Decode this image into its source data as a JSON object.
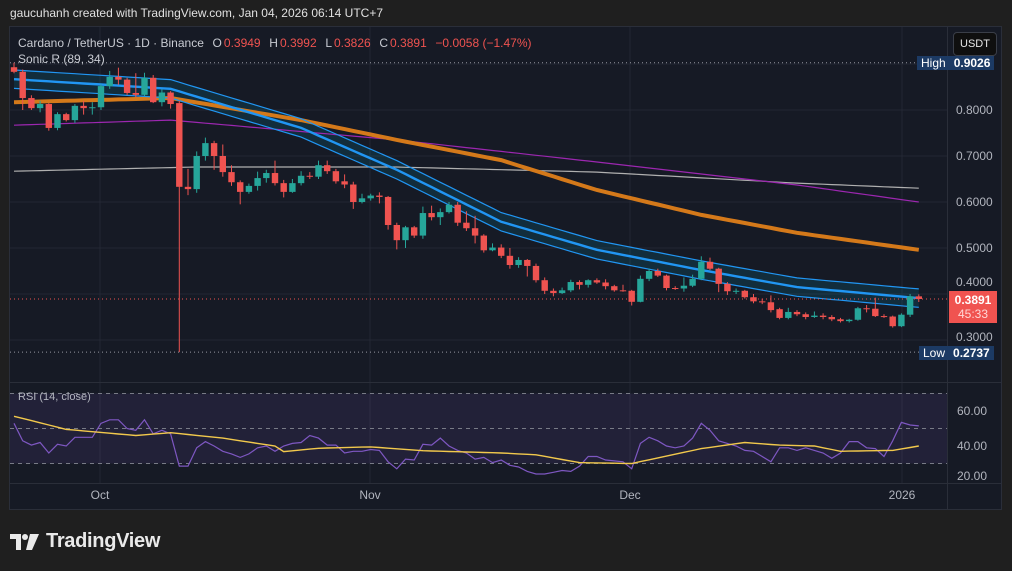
{
  "credit": "gaucuhanh created with TradingView.com, Jan 04, 2026 06:14 UTC+7",
  "legend": {
    "symbol": "Cardano / TetherUS · 1D · Binance",
    "o_label": "O",
    "o": "0.3949",
    "h_label": "H",
    "h": "0.3992",
    "l_label": "L",
    "l": "0.3826",
    "c_label": "C",
    "c": "0.3891",
    "change": "−0.0058 (−1.47%)",
    "indicator": "Sonic R (89, 34)"
  },
  "rsi_label": "RSI (14, close)",
  "currency_button": "USDT",
  "price_axis": [
    "0.8000",
    "0.7000",
    "0.6000",
    "0.5000",
    "0.4000",
    "0.3000"
  ],
  "rsi_axis": [
    "60.00",
    "40.00",
    "20.00"
  ],
  "time_axis": [
    "Oct",
    "Nov",
    "Dec",
    "2026"
  ],
  "high_label": {
    "key": "High",
    "value": "0.9026"
  },
  "low_label": {
    "key": "Low",
    "value": "0.2737"
  },
  "last_price": {
    "value": "0.3891",
    "countdown": "45:33"
  },
  "brand": "TradingView",
  "colors": {
    "up": "#26a69a",
    "down": "#ef5350",
    "band": "#2196f3",
    "ema89": "#d4791a",
    "purple": "#9c27b0",
    "grey": "#b0b0b0",
    "rsi": "#7e57c2",
    "rsi_ma": "#f2c94c"
  },
  "chart_data": {
    "type": "candlestick",
    "title": "Cardano / TetherUS · 1D · Binance",
    "x_start": "Sep 21, 2025",
    "x_end": "Jan 3, 2026",
    "ylim": [
      0.25,
      0.92
    ],
    "candles_ohlc": [
      [
        0.893,
        0.9026,
        0.88,
        0.883
      ],
      [
        0.883,
        0.888,
        0.8,
        0.826
      ],
      [
        0.826,
        0.832,
        0.8,
        0.804
      ],
      [
        0.804,
        0.82,
        0.795,
        0.813
      ],
      [
        0.813,
        0.815,
        0.755,
        0.761
      ],
      [
        0.761,
        0.795,
        0.756,
        0.791
      ],
      [
        0.791,
        0.794,
        0.775,
        0.778
      ],
      [
        0.778,
        0.813,
        0.772,
        0.809
      ],
      [
        0.809,
        0.82,
        0.79,
        0.804
      ],
      [
        0.804,
        0.817,
        0.79,
        0.806
      ],
      [
        0.806,
        0.856,
        0.8,
        0.852
      ],
      [
        0.852,
        0.885,
        0.846,
        0.872
      ],
      [
        0.872,
        0.892,
        0.855,
        0.866
      ],
      [
        0.866,
        0.87,
        0.833,
        0.837
      ],
      [
        0.837,
        0.88,
        0.828,
        0.833
      ],
      [
        0.833,
        0.881,
        0.83,
        0.87
      ],
      [
        0.87,
        0.876,
        0.815,
        0.817
      ],
      [
        0.817,
        0.845,
        0.808,
        0.838
      ],
      [
        0.838,
        0.841,
        0.803,
        0.813
      ],
      [
        0.815,
        0.82,
        0.2737,
        0.633
      ],
      [
        0.633,
        0.672,
        0.615,
        0.628
      ],
      [
        0.628,
        0.71,
        0.62,
        0.7
      ],
      [
        0.7,
        0.74,
        0.69,
        0.728
      ],
      [
        0.728,
        0.733,
        0.67,
        0.7
      ],
      [
        0.7,
        0.725,
        0.655,
        0.665
      ],
      [
        0.665,
        0.68,
        0.635,
        0.643
      ],
      [
        0.643,
        0.647,
        0.595,
        0.622
      ],
      [
        0.622,
        0.64,
        0.618,
        0.635
      ],
      [
        0.635,
        0.666,
        0.625,
        0.652
      ],
      [
        0.652,
        0.67,
        0.642,
        0.663
      ],
      [
        0.663,
        0.69,
        0.636,
        0.641
      ],
      [
        0.641,
        0.648,
        0.61,
        0.622
      ],
      [
        0.622,
        0.65,
        0.62,
        0.641
      ],
      [
        0.641,
        0.667,
        0.636,
        0.657
      ],
      [
        0.657,
        0.665,
        0.65,
        0.655
      ],
      [
        0.655,
        0.69,
        0.65,
        0.68
      ],
      [
        0.68,
        0.69,
        0.661,
        0.667
      ],
      [
        0.667,
        0.672,
        0.64,
        0.645
      ],
      [
        0.645,
        0.66,
        0.63,
        0.638
      ],
      [
        0.638,
        0.644,
        0.585,
        0.6
      ],
      [
        0.6,
        0.618,
        0.597,
        0.608
      ],
      [
        0.608,
        0.618,
        0.603,
        0.614
      ],
      [
        0.614,
        0.621,
        0.597,
        0.611
      ],
      [
        0.611,
        0.613,
        0.54,
        0.55
      ],
      [
        0.55,
        0.555,
        0.497,
        0.517
      ],
      [
        0.517,
        0.548,
        0.5,
        0.545
      ],
      [
        0.545,
        0.548,
        0.522,
        0.527
      ],
      [
        0.527,
        0.59,
        0.52,
        0.576
      ],
      [
        0.576,
        0.592,
        0.56,
        0.567
      ],
      [
        0.567,
        0.586,
        0.55,
        0.578
      ],
      [
        0.578,
        0.6,
        0.575,
        0.594
      ],
      [
        0.594,
        0.6,
        0.548,
        0.555
      ],
      [
        0.555,
        0.58,
        0.537,
        0.543
      ],
      [
        0.543,
        0.57,
        0.51,
        0.527
      ],
      [
        0.527,
        0.53,
        0.49,
        0.495
      ],
      [
        0.495,
        0.51,
        0.493,
        0.501
      ],
      [
        0.501,
        0.508,
        0.478,
        0.483
      ],
      [
        0.483,
        0.5,
        0.455,
        0.463
      ],
      [
        0.463,
        0.48,
        0.457,
        0.474
      ],
      [
        0.474,
        0.476,
        0.438,
        0.461
      ],
      [
        0.461,
        0.466,
        0.425,
        0.43
      ],
      [
        0.43,
        0.436,
        0.4,
        0.407
      ],
      [
        0.407,
        0.412,
        0.395,
        0.402
      ],
      [
        0.402,
        0.414,
        0.4,
        0.408
      ],
      [
        0.408,
        0.431,
        0.404,
        0.426
      ],
      [
        0.426,
        0.43,
        0.41,
        0.42
      ],
      [
        0.42,
        0.432,
        0.414,
        0.43
      ],
      [
        0.43,
        0.434,
        0.422,
        0.425
      ],
      [
        0.425,
        0.432,
        0.41,
        0.417
      ],
      [
        0.417,
        0.42,
        0.405,
        0.408
      ],
      [
        0.408,
        0.42,
        0.405,
        0.407
      ],
      [
        0.407,
        0.409,
        0.375,
        0.383
      ],
      [
        0.383,
        0.44,
        0.382,
        0.433
      ],
      [
        0.433,
        0.455,
        0.428,
        0.45
      ],
      [
        0.45,
        0.455,
        0.437,
        0.44
      ],
      [
        0.44,
        0.442,
        0.408,
        0.413
      ],
      [
        0.413,
        0.417,
        0.409,
        0.412
      ],
      [
        0.412,
        0.436,
        0.405,
        0.418
      ],
      [
        0.418,
        0.442,
        0.415,
        0.433
      ],
      [
        0.433,
        0.482,
        0.43,
        0.47
      ],
      [
        0.47,
        0.479,
        0.452,
        0.455
      ],
      [
        0.455,
        0.457,
        0.404,
        0.422
      ],
      [
        0.422,
        0.426,
        0.398,
        0.406
      ],
      [
        0.406,
        0.412,
        0.4,
        0.407
      ],
      [
        0.407,
        0.409,
        0.39,
        0.393
      ],
      [
        0.393,
        0.4,
        0.38,
        0.384
      ],
      [
        0.384,
        0.39,
        0.378,
        0.382
      ],
      [
        0.382,
        0.397,
        0.36,
        0.365
      ],
      [
        0.367,
        0.37,
        0.345,
        0.348
      ],
      [
        0.348,
        0.37,
        0.345,
        0.361
      ],
      [
        0.361,
        0.365,
        0.352,
        0.356
      ],
      [
        0.356,
        0.36,
        0.345,
        0.35
      ],
      [
        0.35,
        0.362,
        0.348,
        0.353
      ],
      [
        0.353,
        0.358,
        0.345,
        0.35
      ],
      [
        0.35,
        0.354,
        0.341,
        0.345
      ],
      [
        0.345,
        0.348,
        0.338,
        0.341
      ],
      [
        0.341,
        0.346,
        0.338,
        0.344
      ],
      [
        0.344,
        0.372,
        0.342,
        0.369
      ],
      [
        0.369,
        0.376,
        0.36,
        0.368
      ],
      [
        0.368,
        0.392,
        0.35,
        0.352
      ],
      [
        0.352,
        0.356,
        0.348,
        0.351
      ],
      [
        0.351,
        0.353,
        0.327,
        0.33
      ],
      [
        0.33,
        0.358,
        0.328,
        0.355
      ],
      [
        0.355,
        0.4,
        0.35,
        0.395
      ],
      [
        0.3949,
        0.3992,
        0.3826,
        0.3891
      ]
    ],
    "overlays": [
      {
        "name": "ema34_mid",
        "color": "#2196f3",
        "points": [
          [
            0,
            0.867
          ],
          [
            18,
            0.846
          ],
          [
            33,
            0.761
          ],
          [
            44,
            0.67
          ],
          [
            56,
            0.557
          ],
          [
            67,
            0.496
          ],
          [
            79,
            0.452
          ],
          [
            90,
            0.415
          ],
          [
            104,
            0.391
          ]
        ],
        "band_halfwidth": 0.02
      },
      {
        "name": "ema89",
        "color": "#d4791a",
        "points": [
          [
            0,
            0.817
          ],
          [
            18,
            0.826
          ],
          [
            33,
            0.778
          ],
          [
            44,
            0.735
          ],
          [
            56,
            0.691
          ],
          [
            67,
            0.626
          ],
          [
            79,
            0.572
          ],
          [
            90,
            0.533
          ],
          [
            104,
            0.496
          ]
        ]
      },
      {
        "name": "purple_ma",
        "color": "#9c27b0",
        "points": [
          [
            0,
            0.767
          ],
          [
            18,
            0.778
          ],
          [
            44,
            0.735
          ],
          [
            67,
            0.687
          ],
          [
            90,
            0.637
          ],
          [
            104,
            0.6
          ]
        ]
      },
      {
        "name": "grey_ma",
        "color": "#b0b0b0",
        "points": [
          [
            0,
            0.667
          ],
          [
            21,
            0.676
          ],
          [
            44,
            0.676
          ],
          [
            67,
            0.665
          ],
          [
            90,
            0.641
          ],
          [
            104,
            0.63
          ]
        ]
      }
    ],
    "rsi": {
      "period": 14,
      "levels": [
        70,
        50,
        30
      ],
      "ylim": [
        17,
        76
      ],
      "values": [
        53,
        43,
        40.5,
        42,
        36,
        41,
        40,
        45,
        45,
        45,
        53,
        55,
        55,
        50,
        49,
        55,
        47,
        49,
        47,
        28.5,
        28.5,
        39,
        42.5,
        40,
        37,
        35.5,
        33.5,
        35.5,
        39,
        40,
        37,
        40,
        41.5,
        42,
        46,
        44.5,
        40.5,
        40.5,
        36,
        37,
        37,
        38,
        37.5,
        31,
        27,
        32.5,
        32,
        41,
        40.5,
        44.5,
        40,
        37.5,
        36,
        32.5,
        33.5,
        30.5,
        32,
        29,
        28,
        25.5,
        24,
        24,
        25,
        26,
        25.5,
        28.5,
        34,
        34,
        32,
        31.5,
        31,
        27,
        41.5,
        45,
        43,
        40,
        39,
        40,
        44.5,
        53,
        49,
        43,
        41.5,
        40,
        37.5,
        37,
        34,
        31,
        39,
        39,
        37.5,
        39,
        37.5,
        36,
        33,
        36,
        42.5,
        42.5,
        39,
        38.5,
        34,
        43,
        53.5,
        52,
        51.5
      ],
      "ma_points": [
        [
          0,
          57
        ],
        [
          6,
          49.5
        ],
        [
          14,
          46
        ],
        [
          18,
          47.6
        ],
        [
          24,
          44.5
        ],
        [
          30,
          40
        ],
        [
          31,
          36.8
        ],
        [
          35,
          38.7
        ],
        [
          41,
          39.5
        ],
        [
          47,
          37.3
        ],
        [
          56,
          36
        ],
        [
          60,
          35
        ],
        [
          65,
          30.5
        ],
        [
          71,
          30
        ],
        [
          79,
          38.5
        ],
        [
          84,
          42
        ],
        [
          88,
          40.5
        ],
        [
          92,
          40
        ],
        [
          95,
          37
        ],
        [
          101,
          37.5
        ],
        [
          104,
          40
        ]
      ]
    }
  }
}
